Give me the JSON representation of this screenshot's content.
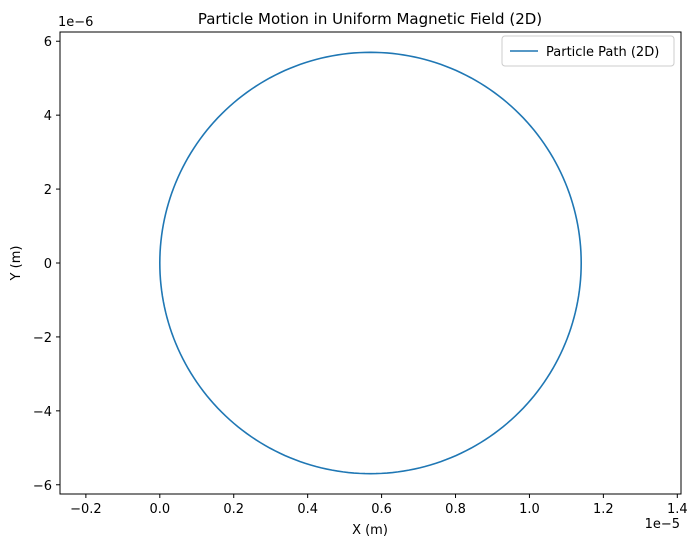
{
  "chart_data": {
    "type": "line",
    "title": "Particle Motion in Uniform Magnetic Field (2D)",
    "xlabel": "X (m)",
    "ylabel": "Y (m)",
    "x_offset_label": "1e−5",
    "y_offset_label": "1e−6",
    "xlim": [
      -2.7e-06,
      1.41e-05
    ],
    "ylim": [
      -6.25e-06,
      6.25e-06
    ],
    "x_ticks": [
      -0.2,
      0.0,
      0.2,
      0.4,
      0.6,
      0.8,
      1.0,
      1.2,
      1.4
    ],
    "x_tick_labels": [
      "−0.2",
      "0.0",
      "0.2",
      "0.4",
      "0.6",
      "0.8",
      "1.0",
      "1.2",
      "1.4"
    ],
    "x_tick_scale": 1e-05,
    "y_ticks": [
      -6,
      -4,
      -2,
      0,
      2,
      4,
      6
    ],
    "y_tick_labels": [
      "−6",
      "−4",
      "−2",
      "0",
      "2",
      "4",
      "6"
    ],
    "y_tick_scale": 1e-06,
    "grid": false,
    "legend_position": "upper-right",
    "series": [
      {
        "name": "Particle Path (2D)",
        "color": "#1f77b4",
        "path": "circle",
        "center": [
          5.7e-06,
          0.0
        ],
        "radius_x": 5.7e-06,
        "radius_y": 5.7e-06
      }
    ]
  }
}
